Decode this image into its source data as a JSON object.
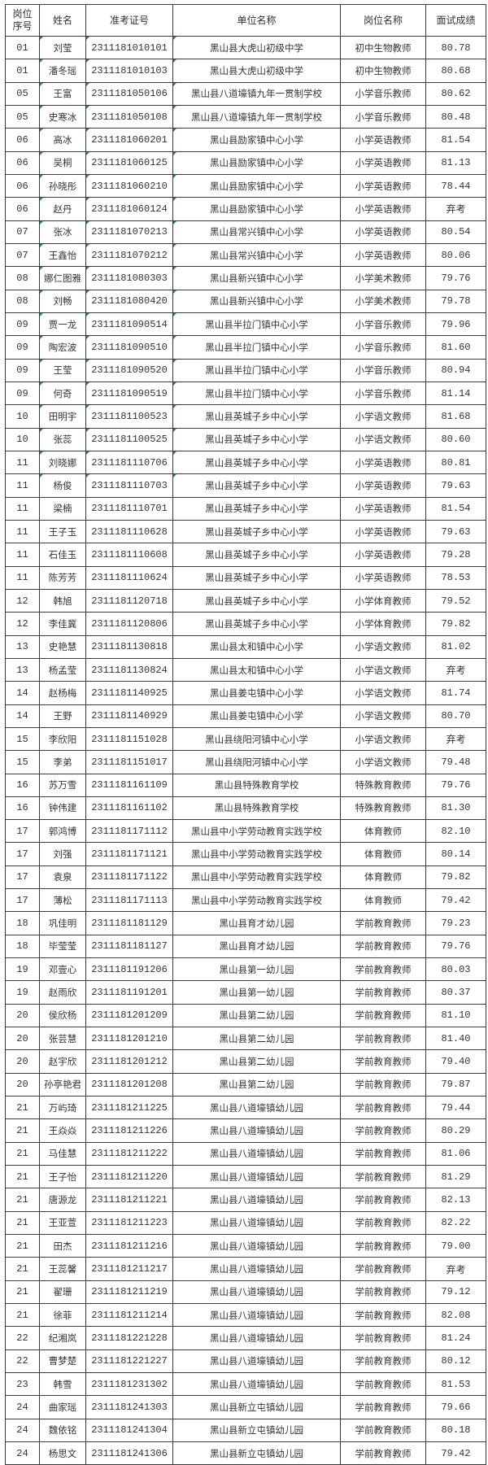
{
  "table": {
    "headers": [
      "岗位\n序号",
      "姓名",
      "准考证号",
      "单位名称",
      "岗位名称",
      "面试成绩"
    ],
    "rows": [
      [
        "01",
        "刘莹",
        "2311181010101",
        "黑山县大虎山初级中学",
        "初中生物教师",
        "80.78"
      ],
      [
        "01",
        "潘冬瑶",
        "2311181010103",
        "黑山县大虎山初级中学",
        "初中生物教师",
        "80.68"
      ],
      [
        "05",
        "王富",
        "2311181050106",
        "黑山县八道壕镇九年一贯制学校",
        "小学音乐教师",
        "80.62"
      ],
      [
        "05",
        "史寒冰",
        "2311181050108",
        "黑山县八道壕镇九年一贯制学校",
        "小学音乐教师",
        "80.48"
      ],
      [
        "06",
        "高冰",
        "2311181060201",
        "黑山县励家镇中心小学",
        "小学英语教师",
        "81.54"
      ],
      [
        "06",
        "吴桐",
        "2311181060125",
        "黑山县励家镇中心小学",
        "小学英语教师",
        "81.13"
      ],
      [
        "06",
        "孙晓彤",
        "2311181060210",
        "黑山县励家镇中心小学",
        "小学英语教师",
        "78.44"
      ],
      [
        "06",
        "赵丹",
        "2311181060124",
        "黑山县励家镇中心小学",
        "小学英语教师",
        "弃考"
      ],
      [
        "07",
        "张冰",
        "2311181070213",
        "黑山县常兴镇中心小学",
        "小学英语教师",
        "80.54"
      ],
      [
        "07",
        "王鑫怡",
        "2311181070212",
        "黑山县常兴镇中心小学",
        "小学英语教师",
        "80.06"
      ],
      [
        "08",
        "娜仁图雅",
        "2311181080303",
        "黑山县新兴镇中心小学",
        "小学美术教师",
        "79.76"
      ],
      [
        "08",
        "刘畅",
        "2311181080420",
        "黑山县新兴镇中心小学",
        "小学美术教师",
        "79.78"
      ],
      [
        "09",
        "贾一龙",
        "2311181090514",
        "黑山县半拉门镇中心小学",
        "小学音乐教师",
        "79.96"
      ],
      [
        "09",
        "陶宏波",
        "2311181090510",
        "黑山县半拉门镇中心小学",
        "小学音乐教师",
        "81.60"
      ],
      [
        "09",
        "王莹",
        "2311181090520",
        "黑山县半拉门镇中心小学",
        "小学音乐教师",
        "80.94"
      ],
      [
        "09",
        "何奇",
        "2311181090519",
        "黑山县半拉门镇中心小学",
        "小学音乐教师",
        "81.14"
      ],
      [
        "10",
        "田明宇",
        "2311181100523",
        "黑山县英城子乡中心小学",
        "小学语文教师",
        "81.68"
      ],
      [
        "10",
        "张蕊",
        "2311181100525",
        "黑山县英城子乡中心小学",
        "小学语文教师",
        "80.60"
      ],
      [
        "11",
        "刘晓娜",
        "2311181110706",
        "黑山县英城子乡中心小学",
        "小学英语教师",
        "80.81"
      ],
      [
        "11",
        "杨俊",
        "2311181110703",
        "黑山县英城子乡中心小学",
        "小学英语教师",
        "79.63"
      ],
      [
        "11",
        "梁楠",
        "2311181110701",
        "黑山县英城子乡中心小学",
        "小学英语教师",
        "81.54"
      ],
      [
        "11",
        "王子玉",
        "2311181110628",
        "黑山县英城子乡中心小学",
        "小学英语教师",
        "79.63"
      ],
      [
        "11",
        "石佳玉",
        "2311181110608",
        "黑山县英城子乡中心小学",
        "小学英语教师",
        "79.28"
      ],
      [
        "11",
        "陈芳芳",
        "2311181110624",
        "黑山县英城子乡中心小学",
        "小学英语教师",
        "78.53"
      ],
      [
        "12",
        "韩旭",
        "2311181120718",
        "黑山县英城子乡中心小学",
        "小学体育教师",
        "79.52"
      ],
      [
        "12",
        "李佳冀",
        "2311181120806",
        "黑山县英城子乡中心小学",
        "小学体育教师",
        "79.82"
      ],
      [
        "13",
        "史艳慧",
        "2311181130818",
        "黑山县太和镇中心小学",
        "小学语文教师",
        "81.02"
      ],
      [
        "13",
        "杨孟莹",
        "2311181130824",
        "黑山县太和镇中心小学",
        "小学语文教师",
        "弃考"
      ],
      [
        "14",
        "赵杨梅",
        "2311181140925",
        "黑山县姜屯镇中心小学",
        "小学语文教师",
        "81.74"
      ],
      [
        "14",
        "王野",
        "2311181140929",
        "黑山县姜屯镇中心小学",
        "小学语文教师",
        "80.70"
      ],
      [
        "15",
        "李欣阳",
        "2311181151028",
        "黑山县绕阳河镇中心小学",
        "小学语文教师",
        "弃考"
      ],
      [
        "15",
        "李弟",
        "2311181151017",
        "黑山县绕阳河镇中心小学",
        "小学语文教师",
        "79.48"
      ],
      [
        "16",
        "苏万雪",
        "2311181161109",
        "黑山县特殊教育学校",
        "特殊教育教师",
        "79.76"
      ],
      [
        "16",
        "钟伟建",
        "2311181161102",
        "黑山县特殊教育学校",
        "特殊教育教师",
        "81.30"
      ],
      [
        "17",
        "郭鸿博",
        "2311181171112",
        "黑山县中小学劳动教育实践学校",
        "体育教师",
        "82.10"
      ],
      [
        "17",
        "刘强",
        "2311181171121",
        "黑山县中小学劳动教育实践学校",
        "体育教师",
        "80.14"
      ],
      [
        "17",
        "袁泉",
        "2311181171122",
        "黑山县中小学劳动教育实践学校",
        "体育教师",
        "79.82"
      ],
      [
        "17",
        "薄松",
        "2311181171113",
        "黑山县中小学劳动教育实践学校",
        "体育教师",
        "79.42"
      ],
      [
        "18",
        "巩佳明",
        "2311181181129",
        "黑山县育才幼儿园",
        "学前教育教师",
        "79.23"
      ],
      [
        "18",
        "毕莹莹",
        "2311181181127",
        "黑山县育才幼儿园",
        "学前教育教师",
        "79.76"
      ],
      [
        "19",
        "邓壹心",
        "2311181191206",
        "黑山县第一幼儿园",
        "学前教育教师",
        "80.03"
      ],
      [
        "19",
        "赵雨欣",
        "2311181191201",
        "黑山县第一幼儿园",
        "学前教育教师",
        "80.37"
      ],
      [
        "20",
        "侯欣杨",
        "2311181201209",
        "黑山县第二幼儿园",
        "学前教育教师",
        "81.10"
      ],
      [
        "20",
        "张芸慧",
        "2311181201210",
        "黑山县第二幼儿园",
        "学前教育教师",
        "81.40"
      ],
      [
        "20",
        "赵宇欣",
        "2311181201212",
        "黑山县第二幼儿园",
        "学前教育教师",
        "79.40"
      ],
      [
        "20",
        "孙亭艳君",
        "2311181201208",
        "黑山县第二幼儿园",
        "学前教育教师",
        "79.87"
      ],
      [
        "21",
        "万屿琦",
        "2311181211225",
        "黑山县八道壕镇幼儿园",
        "学前教育教师",
        "79.44"
      ],
      [
        "21",
        "王焱焱",
        "2311181211226",
        "黑山县八道壕镇幼儿园",
        "学前教育教师",
        "80.29"
      ],
      [
        "21",
        "马佳慧",
        "2311181211222",
        "黑山县八道壕镇幼儿园",
        "学前教育教师",
        "81.06"
      ],
      [
        "21",
        "王子怡",
        "2311181211220",
        "黑山县八道壕镇幼儿园",
        "学前教育教师",
        "81.29"
      ],
      [
        "21",
        "唐源龙",
        "2311181211221",
        "黑山县八道壕镇幼儿园",
        "学前教育教师",
        "82.13"
      ],
      [
        "21",
        "王亚萱",
        "2311181211223",
        "黑山县八道壕镇幼儿园",
        "学前教育教师",
        "82.22"
      ],
      [
        "21",
        "田杰",
        "2311181211216",
        "黑山县八道壕镇幼儿园",
        "学前教育教师",
        "79.00"
      ],
      [
        "21",
        "王蕊馨",
        "2311181211217",
        "黑山县八道壕镇幼儿园",
        "学前教育教师",
        "弃考"
      ],
      [
        "21",
        "翟珊",
        "2311181211219",
        "黑山县八道壕镇幼儿园",
        "学前教育教师",
        "79.12"
      ],
      [
        "21",
        "徐菲",
        "2311181211214",
        "黑山县八道壕镇幼儿园",
        "学前教育教师",
        "82.08"
      ],
      [
        "22",
        "纪湘岚",
        "2311181221228",
        "黑山县八道壕镇幼儿园",
        "学前教育教师",
        "81.24"
      ],
      [
        "22",
        "曹梦楚",
        "2311181221227",
        "黑山县八道壕镇幼儿园",
        "学前教育教师",
        "80.12"
      ],
      [
        "23",
        "韩雪",
        "2311181231302",
        "黑山县八道壕镇幼儿园",
        "学前教育教师",
        "81.53"
      ],
      [
        "24",
        "曲家瑶",
        "2311181241303",
        "黑山县新立屯镇幼儿园",
        "学前教育教师",
        "79.66"
      ],
      [
        "24",
        "魏依铭",
        "2311181241304",
        "黑山县新立屯镇幼儿园",
        "学前教育教师",
        "80.18"
      ],
      [
        "24",
        "杨思文",
        "2311181241306",
        "黑山县新立屯镇幼儿园",
        "学前教育教师",
        "79.42"
      ]
    ]
  },
  "colors": {
    "border": "#3a3a3a",
    "text": "#333333",
    "cell_marker": "#2e8b2e"
  }
}
